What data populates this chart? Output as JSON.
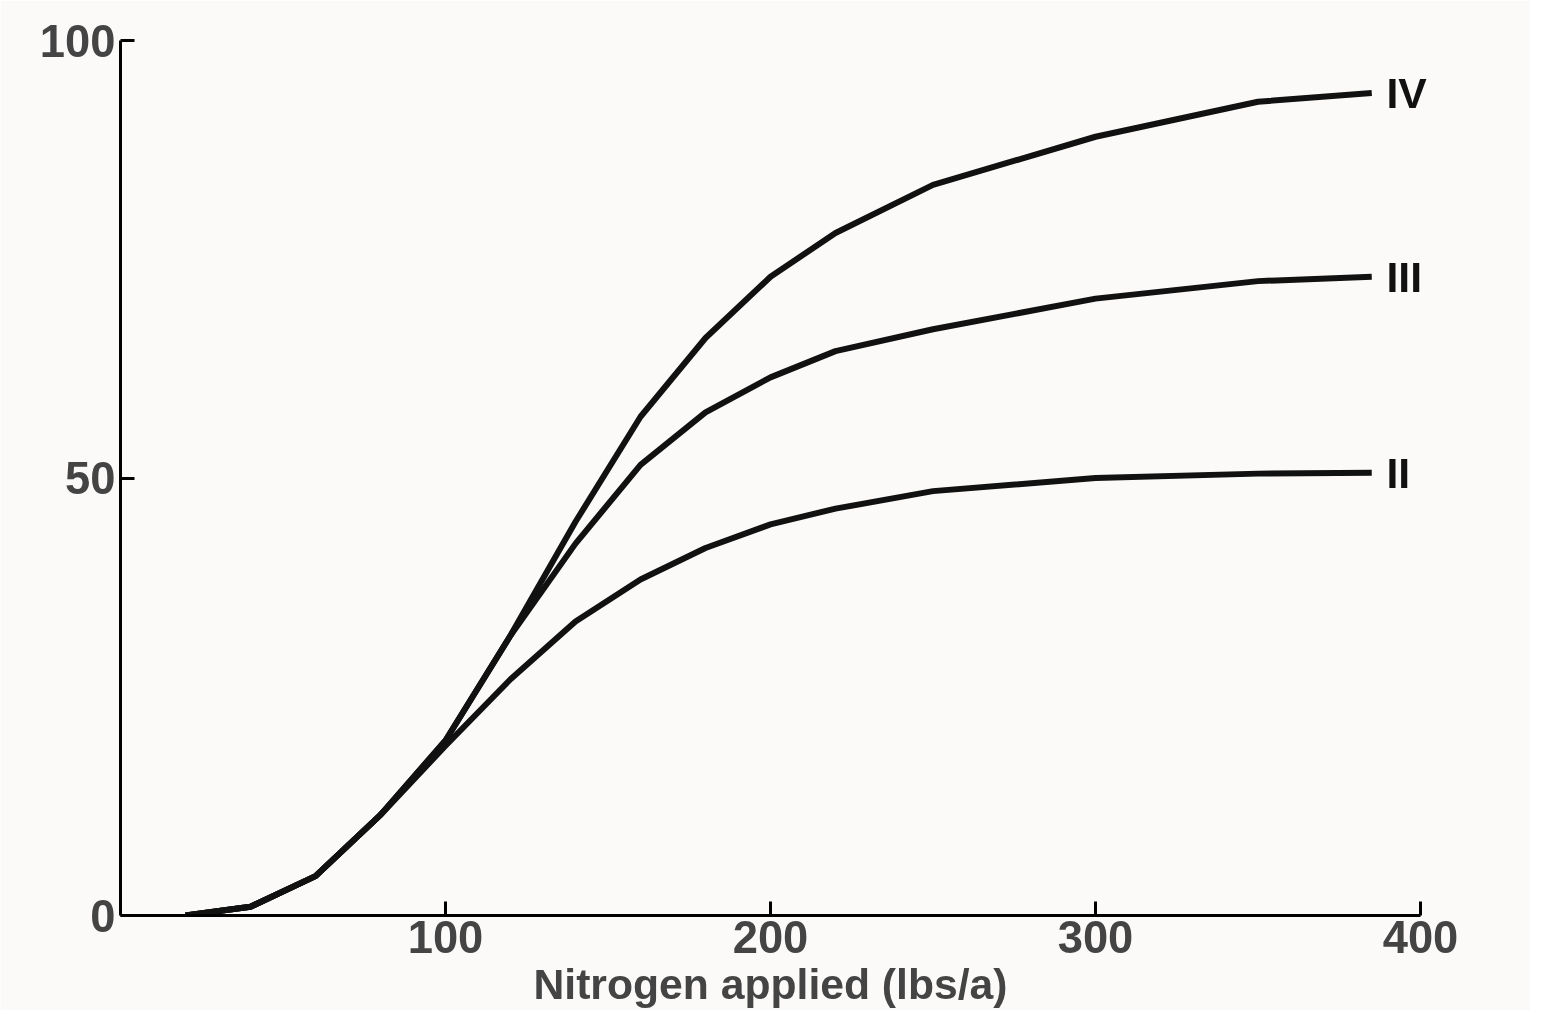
{
  "chart_data": {
    "type": "line",
    "xlabel": "Nitrogen applied (lbs/a)",
    "xlim": [
      0,
      400
    ],
    "ylim": [
      0,
      100
    ],
    "xticks": [
      100,
      200,
      300,
      400
    ],
    "yticks": [
      0,
      50,
      100
    ],
    "grid": false,
    "marker": "none",
    "line_style": "solid",
    "x": [
      20,
      40,
      60,
      80,
      100,
      120,
      140,
      160,
      180,
      200,
      220,
      250,
      300,
      350,
      385
    ],
    "series": [
      {
        "name": "IV",
        "color": "#111111",
        "values": [
          0,
          1,
          4.5,
          11.5,
          20,
          32,
          45,
          57,
          66,
          73,
          78,
          83.5,
          89,
          93,
          94
        ]
      },
      {
        "name": "III",
        "color": "#111111",
        "values": [
          0,
          1,
          4.5,
          11.5,
          20,
          32,
          42.5,
          51.5,
          57.5,
          61.5,
          64.5,
          67,
          70.5,
          72.5,
          73
        ]
      },
      {
        "name": "II",
        "color": "#111111",
        "values": [
          0,
          1,
          4.5,
          11.5,
          19.4,
          27,
          33.6,
          38.4,
          42,
          44.7,
          46.5,
          48.5,
          50,
          50.5,
          50.6
        ]
      }
    ]
  }
}
